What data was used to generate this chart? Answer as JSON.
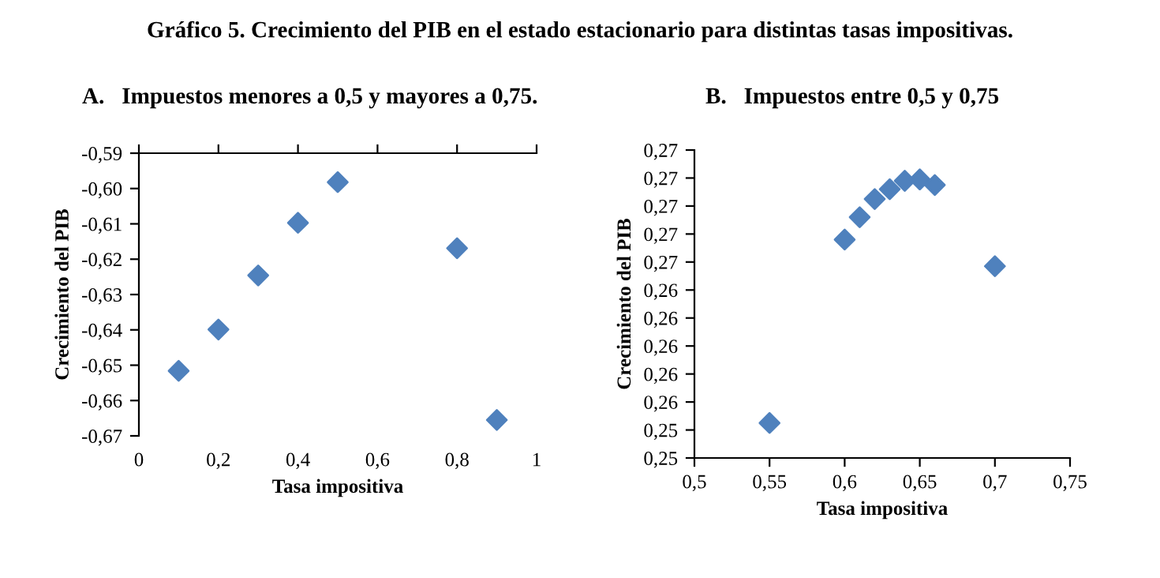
{
  "chart_data": [
    {
      "type": "scatter",
      "title": "Gráfico 5. Crecimiento del PIB en el estado estacionario para distintas tasas impositivas.",
      "subtitle": "A.   Impuestos menores a 0,5 y mayores a 0,75.",
      "xlabel": "Tasa impositiva",
      "ylabel": "Crecimiento del PIB",
      "marker": "diamond",
      "grid": false,
      "legend": false,
      "series": [
        {
          "color": "#4f81bd",
          "x": [
            0.1,
            0.2,
            0.3,
            0.4,
            0.5,
            0.8,
            0.9
          ],
          "values": [
            -0.6516,
            -0.6399,
            -0.6246,
            -0.6097,
            -0.5982,
            -0.6169,
            -0.6655
          ]
        }
      ],
      "xlim": [
        0,
        1
      ],
      "xticks": [
        0,
        {
          "value": 0.2,
          "label": "0,2"
        },
        {
          "value": 0.4,
          "label": "0,4"
        },
        {
          "value": 0.6,
          "label": "0,6"
        },
        {
          "value": 0.8,
          "label": "0,8"
        },
        1
      ],
      "ylim": [
        -0.67,
        -0.59
      ],
      "yticks": [
        {
          "value": -0.67,
          "label": "-0,67"
        },
        {
          "value": -0.66,
          "label": "-0,66"
        },
        {
          "value": -0.65,
          "label": "-0,65"
        },
        {
          "value": -0.64,
          "label": "-0,64"
        },
        {
          "value": -0.63,
          "label": "-0,63"
        },
        {
          "value": -0.62,
          "label": "-0,62"
        },
        {
          "value": -0.61,
          "label": "-0,61"
        },
        {
          "value": -0.6,
          "label": "-0,60"
        },
        {
          "value": -0.59,
          "label": "-0,59"
        }
      ]
    },
    {
      "type": "scatter",
      "subtitle": "B.   Impuestos entre 0,5 y 0,75",
      "xlabel": "Tasa impositiva",
      "ylabel": "Crecimiento del PIB",
      "marker": "diamond",
      "grid": false,
      "legend": false,
      "series": [
        {
          "color": "#4f81bd",
          "x": [
            0.55,
            0.6,
            0.61,
            0.62,
            0.63,
            0.64,
            0.65,
            0.66,
            0.7
          ],
          "values": [
            0.2545,
            0.2676,
            0.2692,
            0.2705,
            0.2712,
            0.2718,
            0.2719,
            0.2715,
            0.2657
          ]
        }
      ],
      "xlim": [
        0.5,
        0.75
      ],
      "xticks": [
        {
          "value": 0.5,
          "label": "0,5"
        },
        {
          "value": 0.55,
          "label": "0,55"
        },
        {
          "value": 0.6,
          "label": "0,6"
        },
        {
          "value": 0.65,
          "label": "0,65"
        },
        {
          "value": 0.7,
          "label": "0,7"
        },
        {
          "value": 0.75,
          "label": "0,75"
        }
      ],
      "ylim": [
        0.252,
        0.274
      ],
      "yticks": [
        {
          "value": 0.252,
          "label": "0,25"
        },
        {
          "value": 0.254,
          "label": "0,25"
        },
        {
          "value": 0.256,
          "label": "0,26"
        },
        {
          "value": 0.258,
          "label": "0,26"
        },
        {
          "value": 0.26,
          "label": "0,26"
        },
        {
          "value": 0.262,
          "label": "0,26"
        },
        {
          "value": 0.264,
          "label": "0,26"
        },
        {
          "value": 0.266,
          "label": "0,27"
        },
        {
          "value": 0.268,
          "label": "0,27"
        },
        {
          "value": 0.27,
          "label": "0,27"
        },
        {
          "value": 0.272,
          "label": "0,27"
        },
        {
          "value": 0.274,
          "label": "0,27"
        }
      ]
    }
  ]
}
